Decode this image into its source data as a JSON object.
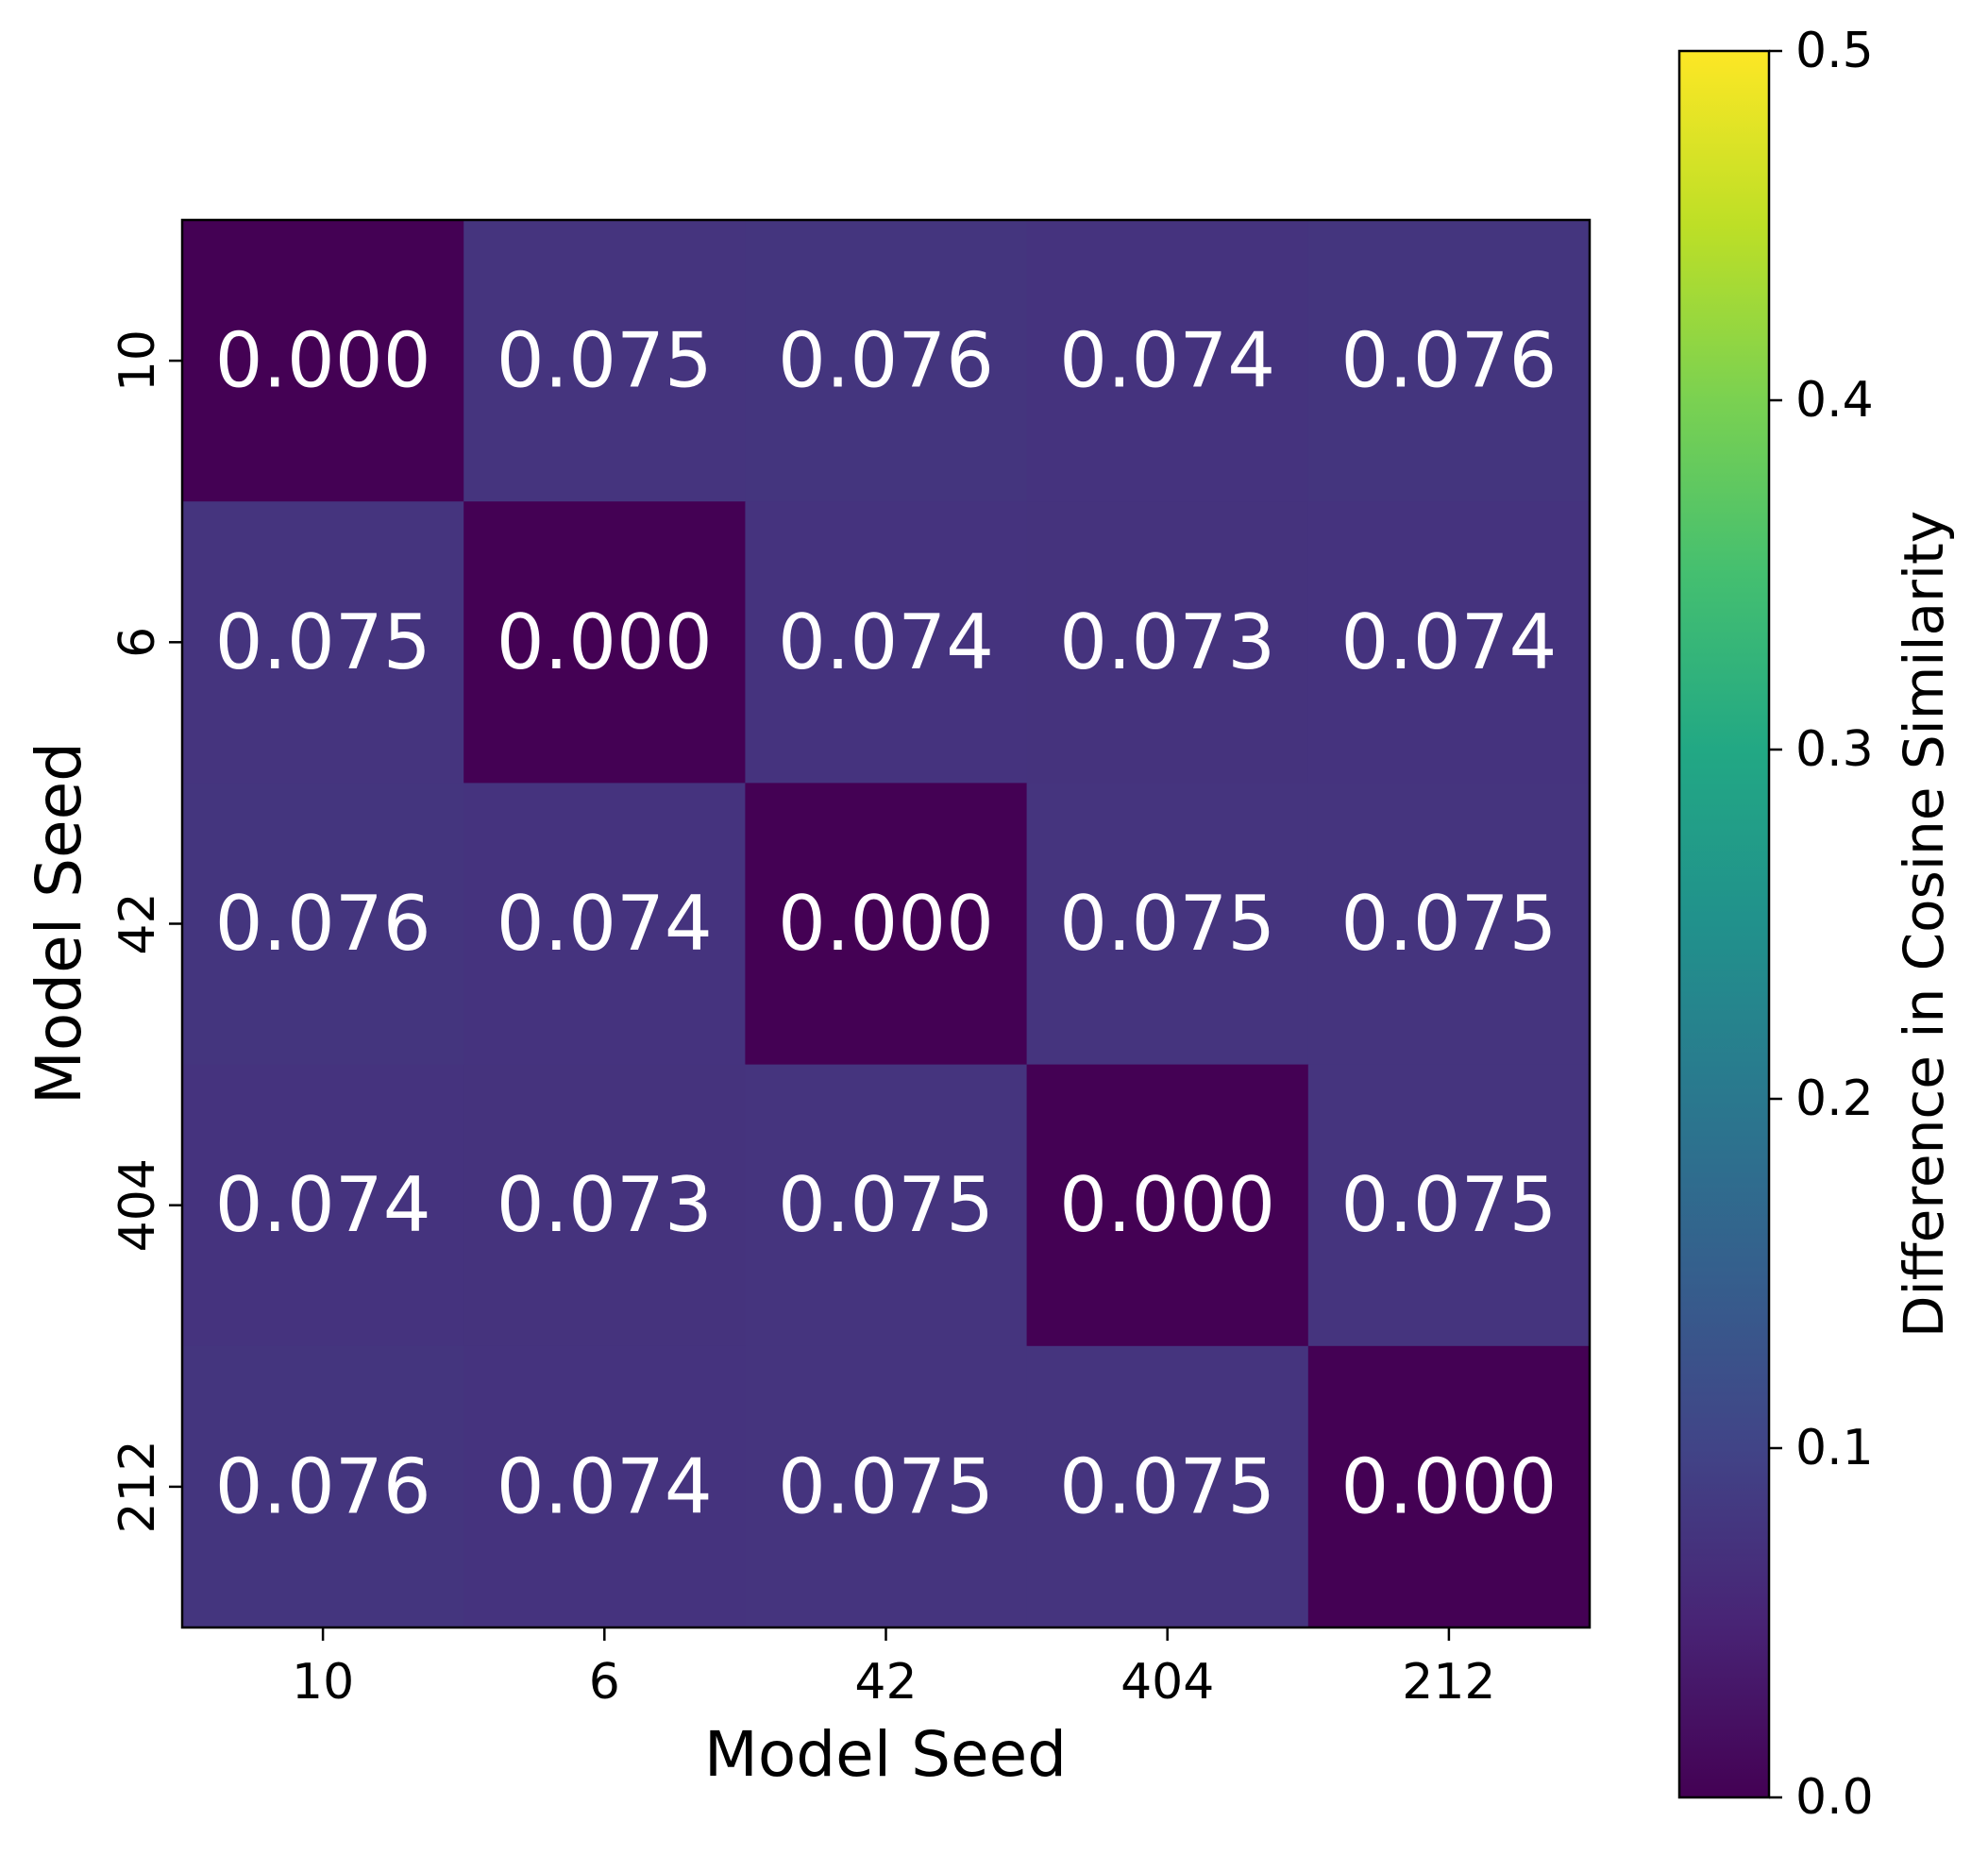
{
  "chart_data": {
    "type": "heatmap",
    "title": "",
    "xlabel": "Model Seed",
    "ylabel": "Model Seed",
    "x_categories": [
      "10",
      "6",
      "42",
      "404",
      "212"
    ],
    "y_categories": [
      "10",
      "6",
      "42",
      "404",
      "212"
    ],
    "values": [
      [
        0.0,
        0.075,
        0.076,
        0.074,
        0.076
      ],
      [
        0.075,
        0.0,
        0.074,
        0.073,
        0.074
      ],
      [
        0.076,
        0.074,
        0.0,
        0.075,
        0.075
      ],
      [
        0.074,
        0.073,
        0.075,
        0.0,
        0.075
      ],
      [
        0.076,
        0.074,
        0.075,
        0.075,
        0.0
      ]
    ],
    "cell_labels": [
      [
        "0.000",
        "0.075",
        "0.076",
        "0.074",
        "0.076"
      ],
      [
        "0.075",
        "0.000",
        "0.074",
        "0.073",
        "0.074"
      ],
      [
        "0.076",
        "0.074",
        "0.000",
        "0.075",
        "0.075"
      ],
      [
        "0.074",
        "0.073",
        "0.075",
        "0.000",
        "0.075"
      ],
      [
        "0.076",
        "0.074",
        "0.075",
        "0.075",
        "0.000"
      ]
    ],
    "colormap": "viridis",
    "color_range": [
      0.0,
      0.5
    ],
    "colorbar": {
      "label": "Difference in Cosine Similarity",
      "ticks": [
        0.0,
        0.1,
        0.2,
        0.3,
        0.4,
        0.5
      ],
      "tick_labels": [
        "0.0",
        "0.1",
        "0.2",
        "0.3",
        "0.4",
        "0.5"
      ],
      "placement": "right"
    },
    "annotation_color": "#ffffff",
    "grid": false
  }
}
